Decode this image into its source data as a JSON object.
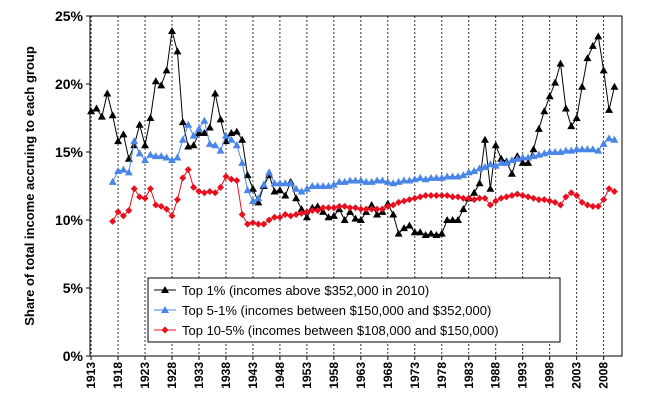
{
  "chart_data": {
    "type": "line",
    "ylabel": "Share of total income accruing to each group",
    "x": [
      1913,
      1914,
      1915,
      1916,
      1917,
      1918,
      1919,
      1920,
      1921,
      1922,
      1923,
      1924,
      1925,
      1926,
      1927,
      1928,
      1929,
      1930,
      1931,
      1932,
      1933,
      1934,
      1935,
      1936,
      1937,
      1938,
      1939,
      1940,
      1941,
      1942,
      1943,
      1944,
      1945,
      1946,
      1947,
      1948,
      1949,
      1950,
      1951,
      1952,
      1953,
      1954,
      1955,
      1956,
      1957,
      1958,
      1959,
      1960,
      1961,
      1962,
      1963,
      1964,
      1965,
      1966,
      1967,
      1968,
      1969,
      1970,
      1971,
      1972,
      1973,
      1974,
      1975,
      1976,
      1977,
      1978,
      1979,
      1980,
      1981,
      1982,
      1983,
      1984,
      1985,
      1986,
      1987,
      1988,
      1989,
      1990,
      1991,
      1992,
      1993,
      1994,
      1995,
      1996,
      1997,
      1998,
      1999,
      2000,
      2001,
      2002,
      2003,
      2004,
      2005,
      2006,
      2007,
      2008,
      2009,
      2010
    ],
    "series": [
      {
        "name": "Top 1% (incomes above $352,000 in 2010)",
        "color": "#000000",
        "marker": "triangle",
        "values": [
          18.0,
          18.2,
          17.6,
          19.3,
          17.7,
          15.8,
          16.3,
          14.5,
          15.5,
          17.0,
          15.5,
          17.5,
          20.2,
          19.9,
          21.0,
          23.9,
          22.4,
          17.2,
          15.4,
          15.5,
          16.4,
          16.4,
          16.8,
          19.3,
          17.4,
          15.8,
          16.4,
          16.5,
          15.9,
          13.3,
          12.3,
          11.3,
          12.5,
          13.3,
          12.1,
          12.2,
          11.8,
          12.8,
          11.6,
          10.8,
          10.2,
          10.9,
          11.0,
          10.6,
          10.2,
          10.3,
          10.8,
          10.0,
          10.6,
          10.1,
          10.0,
          10.6,
          11.1,
          10.4,
          10.6,
          11.2,
          10.4,
          9.0,
          9.4,
          9.6,
          9.1,
          9.1,
          8.9,
          9.0,
          8.9,
          9.0,
          10.0,
          10.0,
          10.0,
          10.8,
          11.6,
          12.0,
          12.7,
          15.9,
          12.3,
          15.5,
          14.5,
          14.3,
          13.4,
          14.7,
          14.2,
          14.2,
          15.2,
          16.7,
          18.0,
          19.1,
          20.1,
          21.5,
          18.2,
          16.9,
          17.5,
          19.8,
          21.9,
          22.8,
          23.5,
          21.0,
          18.1,
          19.8
        ]
      },
      {
        "name": "Top 5-1% (incomes between $150,000 and $352,000)",
        "color": "#4a86e8",
        "marker": "triangle",
        "values": [
          null,
          null,
          null,
          null,
          12.8,
          13.6,
          13.7,
          13.5,
          15.8,
          14.9,
          14.4,
          14.8,
          14.7,
          14.7,
          14.6,
          14.4,
          14.6,
          15.9,
          17.0,
          16.2,
          16.7,
          17.3,
          15.6,
          15.5,
          15.1,
          16.2,
          15.9,
          15.5,
          14.2,
          12.2,
          11.4,
          11.6,
          12.6,
          13.5,
          12.7,
          12.7,
          12.7,
          12.7,
          12.3,
          12.1,
          12.3,
          12.5,
          12.5,
          12.5,
          12.5,
          12.6,
          12.8,
          12.8,
          12.9,
          12.9,
          12.9,
          12.8,
          12.8,
          12.9,
          12.9,
          12.8,
          12.7,
          12.8,
          12.9,
          12.9,
          13.0,
          13.1,
          13.0,
          13.1,
          13.1,
          13.1,
          13.2,
          13.2,
          13.2,
          13.3,
          13.5,
          13.6,
          13.8,
          13.9,
          14.1,
          14.0,
          14.2,
          14.2,
          14.4,
          14.5,
          14.6,
          14.6,
          14.7,
          14.8,
          14.9,
          15.0,
          15.0,
          15.0,
          15.1,
          15.1,
          15.2,
          15.2,
          15.2,
          15.2,
          15.1,
          15.6,
          16.0,
          15.9
        ]
      },
      {
        "name": "Top 10-5% (incomes between $108,000 and $150,000)",
        "color": "#e8101e",
        "marker": "diamond",
        "values": [
          null,
          null,
          null,
          null,
          9.9,
          10.6,
          10.3,
          10.7,
          12.3,
          11.7,
          11.6,
          12.3,
          11.1,
          11.0,
          10.8,
          10.3,
          11.5,
          13.1,
          13.7,
          12.4,
          12.1,
          12.0,
          12.1,
          12.0,
          12.4,
          13.2,
          13.0,
          12.9,
          10.4,
          9.7,
          9.8,
          9.7,
          9.7,
          10.0,
          10.2,
          10.2,
          10.4,
          10.3,
          10.4,
          10.5,
          10.6,
          10.7,
          10.7,
          10.9,
          10.9,
          10.9,
          11.0,
          11.0,
          10.9,
          10.9,
          10.8,
          10.8,
          10.8,
          10.8,
          10.8,
          11.0,
          11.1,
          11.3,
          11.4,
          11.5,
          11.6,
          11.7,
          11.8,
          11.8,
          11.8,
          11.8,
          11.8,
          11.7,
          11.7,
          11.6,
          11.6,
          11.5,
          11.6,
          11.6,
          11.1,
          11.4,
          11.6,
          11.7,
          11.8,
          11.9,
          11.8,
          11.7,
          11.6,
          11.5,
          11.5,
          11.4,
          11.3,
          11.1,
          11.7,
          12.0,
          11.8,
          11.3,
          11.1,
          11.0,
          11.0,
          11.5,
          12.3,
          12.1
        ]
      }
    ],
    "xlim": [
      1912.8,
      2011.4
    ],
    "xticks": [
      1913,
      1918,
      1923,
      1928,
      1933,
      1938,
      1943,
      1948,
      1953,
      1958,
      1963,
      1968,
      1973,
      1978,
      1983,
      1988,
      1993,
      1998,
      2003,
      2008
    ],
    "ylim": [
      0,
      25
    ],
    "yticks": [
      {
        "value": 0,
        "label": "0%"
      },
      {
        "value": 5,
        "label": "5%"
      },
      {
        "value": 10,
        "label": "10%"
      },
      {
        "value": 15,
        "label": "15%"
      },
      {
        "value": 20,
        "label": "20%"
      },
      {
        "value": 25,
        "label": "25%"
      }
    ],
    "grid": "x",
    "legend": "bottom"
  }
}
